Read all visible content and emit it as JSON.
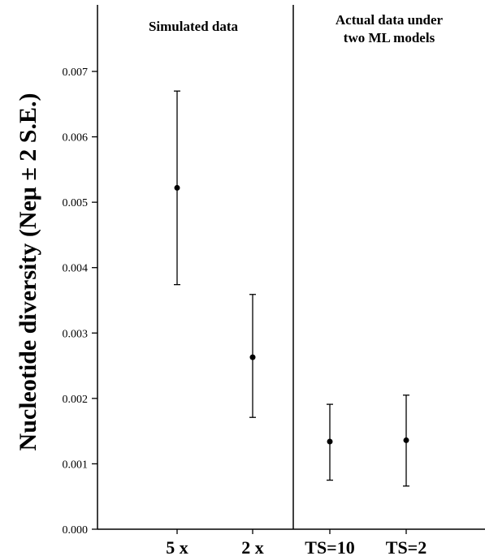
{
  "chart_data": {
    "type": "scatter",
    "ylabel": "Nucleotide diversity  (Neμ ± 2 S.E.)",
    "ylim": [
      0,
      0.007
    ],
    "yticks": [
      "0.000",
      "0.001",
      "0.002",
      "0.003",
      "0.004",
      "0.005",
      "0.006",
      "0.007"
    ],
    "yticks_values": [
      0,
      0.001,
      0.002,
      0.003,
      0.004,
      0.005,
      0.006,
      0.007
    ],
    "grid": false,
    "panels": [
      {
        "title_lines": [
          "Simulated data"
        ]
      },
      {
        "title_lines": [
          "Actual data under",
          "two ML models"
        ]
      }
    ],
    "categories": [
      "5 x",
      "2 x",
      "TS=10",
      "TS=2"
    ],
    "values": [
      0.00522,
      0.00263,
      0.00134,
      0.00136
    ],
    "lower": [
      0.00374,
      0.00171,
      0.00075,
      0.00066
    ],
    "upper": [
      0.0067,
      0.00359,
      0.00191,
      0.00205
    ]
  }
}
